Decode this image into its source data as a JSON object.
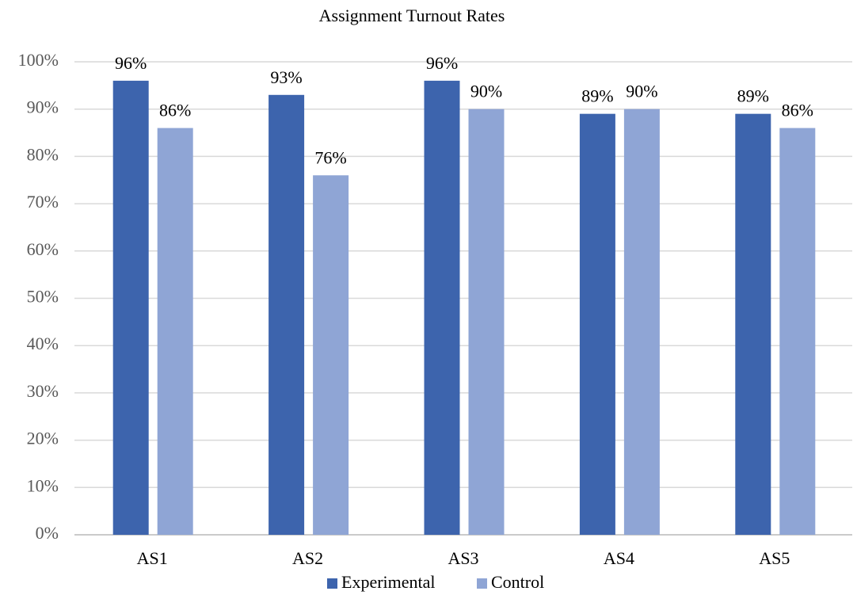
{
  "chart_data": {
    "type": "bar",
    "title": "Assignment Turnout Rates",
    "categories": [
      "AS1",
      "AS2",
      "AS3",
      "AS4",
      "AS5"
    ],
    "series": [
      {
        "name": "Experimental",
        "color": "#3d64ad",
        "values": [
          96,
          93,
          96,
          89,
          89
        ],
        "value_labels": [
          "96%",
          "93%",
          "96%",
          "89%",
          "89%"
        ]
      },
      {
        "name": "Control",
        "color": "#8fa5d5",
        "values": [
          86,
          76,
          90,
          90,
          86
        ],
        "value_labels": [
          "86%",
          "76%",
          "90%",
          "90%",
          "86%"
        ]
      }
    ],
    "ylim": [
      0,
      100
    ],
    "yticks": [
      {
        "value": 0,
        "label": "0%"
      },
      {
        "value": 10,
        "label": "10%"
      },
      {
        "value": 20,
        "label": "20%"
      },
      {
        "value": 30,
        "label": "30%"
      },
      {
        "value": 40,
        "label": "40%"
      },
      {
        "value": 50,
        "label": "50%"
      },
      {
        "value": 60,
        "label": "60%"
      },
      {
        "value": 70,
        "label": "70%"
      },
      {
        "value": 80,
        "label": "80%"
      },
      {
        "value": 90,
        "label": "90%"
      },
      {
        "value": 100,
        "label": "100%"
      }
    ],
    "grid": true,
    "legend": "bottom"
  }
}
